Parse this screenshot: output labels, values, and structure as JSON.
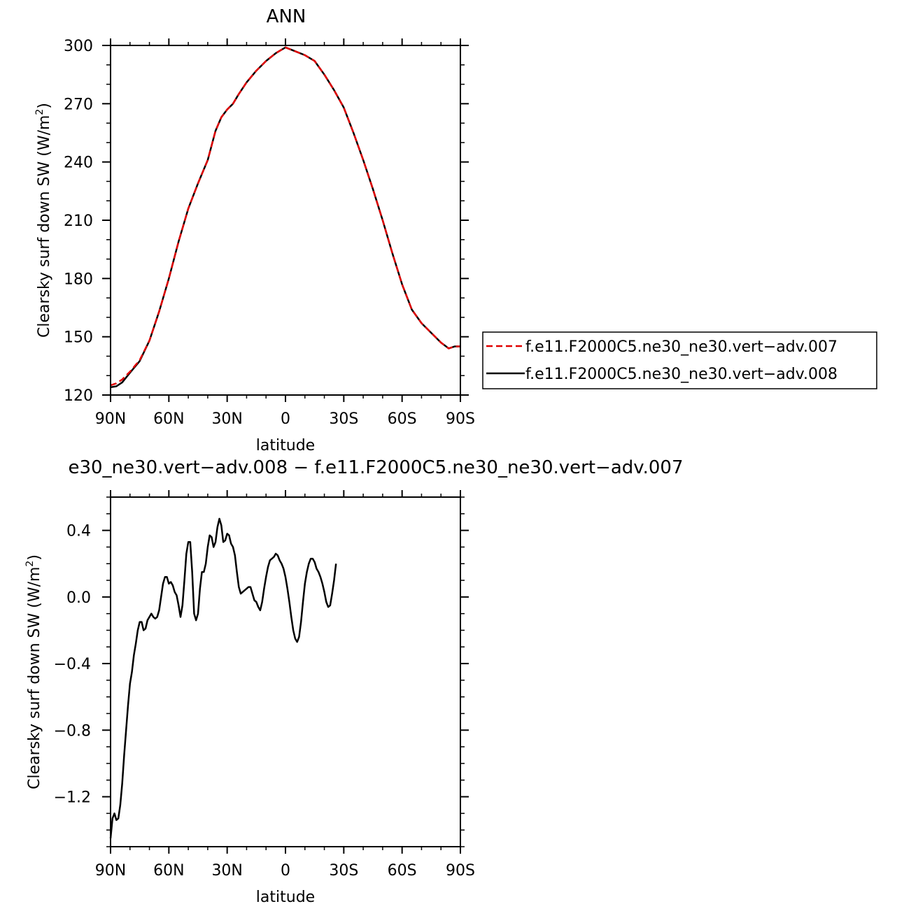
{
  "chart_data": [
    {
      "type": "line",
      "title": "ANN",
      "xlabel": "latitude",
      "ylabel": "Clearsky surf down SW (W/m²)",
      "ylabel_main": "Clearsky surf down SW (W/m",
      "ylabel_sup": "2",
      "ylabel_end": ")",
      "xlim": [
        90,
        -90
      ],
      "ylim": [
        120,
        300
      ],
      "x_ticks": [
        {
          "v": 90,
          "label": "90N"
        },
        {
          "v": 60,
          "label": "60N"
        },
        {
          "v": 30,
          "label": "30N"
        },
        {
          "v": 0,
          "label": "0"
        },
        {
          "v": -30,
          "label": "30S"
        },
        {
          "v": -60,
          "label": "60S"
        },
        {
          "v": -90,
          "label": "90S"
        }
      ],
      "y_ticks": [
        {
          "v": 120,
          "label": "120"
        },
        {
          "v": 150,
          "label": "150"
        },
        {
          "v": 180,
          "label": "180"
        },
        {
          "v": 210,
          "label": "210"
        },
        {
          "v": 240,
          "label": "240"
        },
        {
          "v": 270,
          "label": "270"
        },
        {
          "v": 300,
          "label": "300"
        }
      ],
      "legend": {
        "placement": "right",
        "entries": [
          {
            "name": "f.e11.F2000C5.ne30_ne30.vert−adv.007",
            "color": "#e00000",
            "dash": true
          },
          {
            "name": "f.e11.F2000C5.ne30_ne30.vert−adv.008",
            "color": "#000000",
            "dash": false
          }
        ]
      },
      "series": [
        {
          "name": "f.e11.F2000C5.ne30_ne30.vert−adv.007",
          "color": "#e00000",
          "dashed": true,
          "points": [
            [
              90,
              125
            ],
            [
              87,
              126
            ],
            [
              84,
              128
            ],
            [
              80,
              132
            ],
            [
              75,
              138
            ],
            [
              70,
              148
            ],
            [
              65,
              163
            ],
            [
              60,
              180
            ],
            [
              55,
              199
            ],
            [
              50,
              216
            ],
            [
              45,
              229
            ],
            [
              40,
              241
            ],
            [
              36,
              256
            ],
            [
              33,
              263
            ],
            [
              30,
              267
            ],
            [
              27,
              270
            ],
            [
              24,
              275
            ],
            [
              20,
              281
            ],
            [
              15,
              287
            ],
            [
              10,
              292
            ],
            [
              5,
              296
            ],
            [
              0,
              299
            ],
            [
              -5,
              297
            ],
            [
              -10,
              295
            ],
            [
              -15,
              292
            ],
            [
              -20,
              285
            ],
            [
              -25,
              277
            ],
            [
              -30,
              268
            ],
            [
              -35,
              255
            ],
            [
              -40,
              241
            ],
            [
              -45,
              226
            ],
            [
              -50,
              210
            ],
            [
              -55,
              193
            ],
            [
              -60,
              177
            ],
            [
              -65,
              164
            ],
            [
              -70,
              157
            ],
            [
              -75,
              152
            ],
            [
              -80,
              147
            ],
            [
              -84,
              144
            ],
            [
              -87,
              145
            ],
            [
              -90,
              145
            ]
          ]
        },
        {
          "name": "f.e11.F2000C5.ne30_ne30.vert−adv.008",
          "color": "#000000",
          "dashed": false,
          "points": [
            [
              90,
              124
            ],
            [
              87,
              124.5
            ],
            [
              84,
              126.5
            ],
            [
              80,
              131.5
            ],
            [
              75,
              137.5
            ],
            [
              70,
              148
            ],
            [
              65,
              163
            ],
            [
              60,
              180
            ],
            [
              55,
              199
            ],
            [
              50,
              216
            ],
            [
              45,
              229
            ],
            [
              40,
              241
            ],
            [
              36,
              256
            ],
            [
              33,
              263
            ],
            [
              30,
              267
            ],
            [
              27,
              270
            ],
            [
              24,
              275
            ],
            [
              20,
              281
            ],
            [
              15,
              287
            ],
            [
              10,
              292
            ],
            [
              5,
              296
            ],
            [
              0,
              299
            ],
            [
              -5,
              297
            ],
            [
              -10,
              295
            ],
            [
              -15,
              292
            ],
            [
              -20,
              285
            ],
            [
              -25,
              277
            ],
            [
              -30,
              268
            ],
            [
              -35,
              255
            ],
            [
              -40,
              241
            ],
            [
              -45,
              226
            ],
            [
              -50,
              210
            ],
            [
              -55,
              193
            ],
            [
              -60,
              177
            ],
            [
              -65,
              164
            ],
            [
              -70,
              157
            ],
            [
              -75,
              152
            ],
            [
              -80,
              147
            ],
            [
              -84,
              144
            ],
            [
              -87,
              145
            ],
            [
              -90,
              145
            ]
          ]
        }
      ]
    },
    {
      "type": "line",
      "title": "e30_ne30.vert−adv.008 − f.e11.F2000C5.ne30_ne30.vert−adv.007",
      "xlabel": "latitude",
      "ylabel": "Clearsky surf down SW (W/m²)",
      "ylabel_main": "Clearsky surf down SW (W/m",
      "ylabel_sup": "2",
      "ylabel_end": ")",
      "xlim": [
        90,
        -90
      ],
      "ylim": [
        -1.5,
        0.6
      ],
      "x_ticks": [
        {
          "v": 90,
          "label": "90N"
        },
        {
          "v": 60,
          "label": "60N"
        },
        {
          "v": 30,
          "label": "30N"
        },
        {
          "v": 0,
          "label": "0"
        },
        {
          "v": -30,
          "label": "30S"
        },
        {
          "v": -60,
          "label": "60S"
        },
        {
          "v": -90,
          "label": "90S"
        }
      ],
      "y_ticks": [
        {
          "v": 0.4,
          "label": "0.4"
        },
        {
          "v": 0.0,
          "label": "0.0"
        },
        {
          "v": -0.4,
          "label": "−0.4"
        },
        {
          "v": -0.8,
          "label": "−0.8"
        },
        {
          "v": -1.2,
          "label": "−1.2"
        }
      ],
      "series": [
        {
          "color": "#000000",
          "dashed": false,
          "points": [
            [
              90,
              -1.45
            ],
            [
              89,
              -1.33
            ],
            [
              88,
              -1.3
            ],
            [
              87,
              -1.34
            ],
            [
              86,
              -1.33
            ],
            [
              85,
              -1.25
            ],
            [
              84,
              -1.12
            ],
            [
              83,
              -0.95
            ],
            [
              82,
              -0.8
            ],
            [
              81,
              -0.65
            ],
            [
              80,
              -0.52
            ],
            [
              79,
              -0.45
            ],
            [
              78,
              -0.35
            ],
            [
              77,
              -0.28
            ],
            [
              76,
              -0.2
            ],
            [
              75,
              -0.15
            ],
            [
              74,
              -0.15
            ],
            [
              73,
              -0.2
            ],
            [
              72,
              -0.19
            ],
            [
              71,
              -0.14
            ],
            [
              70,
              -0.12
            ],
            [
              69,
              -0.1
            ],
            [
              68,
              -0.12
            ],
            [
              67,
              -0.13
            ],
            [
              66,
              -0.12
            ],
            [
              65,
              -0.08
            ],
            [
              64,
              0.0
            ],
            [
              63,
              0.08
            ],
            [
              62,
              0.12
            ],
            [
              61,
              0.12
            ],
            [
              60,
              0.08
            ],
            [
              59,
              0.09
            ],
            [
              58,
              0.07
            ],
            [
              57,
              0.03
            ],
            [
              56,
              0.01
            ],
            [
              55,
              -0.05
            ],
            [
              54,
              -0.12
            ],
            [
              53,
              -0.05
            ],
            [
              52,
              0.1
            ],
            [
              51,
              0.26
            ],
            [
              50,
              0.33
            ],
            [
              49,
              0.33
            ],
            [
              48,
              0.15
            ],
            [
              47,
              -0.1
            ],
            [
              46,
              -0.14
            ],
            [
              45,
              -0.1
            ],
            [
              44,
              0.05
            ],
            [
              43,
              0.15
            ],
            [
              42,
              0.15
            ],
            [
              41,
              0.2
            ],
            [
              40,
              0.3
            ],
            [
              39,
              0.37
            ],
            [
              38,
              0.36
            ],
            [
              37,
              0.3
            ],
            [
              36,
              0.33
            ],
            [
              35,
              0.42
            ],
            [
              34,
              0.47
            ],
            [
              33,
              0.43
            ],
            [
              32,
              0.33
            ],
            [
              31,
              0.34
            ],
            [
              30,
              0.38
            ],
            [
              29,
              0.37
            ],
            [
              28,
              0.32
            ],
            [
              27,
              0.3
            ],
            [
              26,
              0.25
            ],
            [
              25,
              0.15
            ],
            [
              24,
              0.06
            ],
            [
              23,
              0.02
            ],
            [
              22,
              0.03
            ],
            [
              21,
              0.04
            ],
            [
              20,
              0.05
            ],
            [
              19,
              0.06
            ],
            [
              18,
              0.06
            ],
            [
              17,
              0.02
            ],
            [
              16,
              -0.02
            ],
            [
              15,
              -0.03
            ],
            [
              14,
              -0.06
            ],
            [
              13,
              -0.08
            ],
            [
              12,
              -0.03
            ],
            [
              11,
              0.05
            ],
            [
              10,
              0.12
            ],
            [
              9,
              0.18
            ],
            [
              8,
              0.22
            ],
            [
              7,
              0.23
            ],
            [
              6,
              0.24
            ],
            [
              5,
              0.26
            ],
            [
              4,
              0.25
            ],
            [
              3,
              0.22
            ],
            [
              2,
              0.2
            ],
            [
              1,
              0.17
            ],
            [
              0,
              0.12
            ],
            [
              -1,
              0.05
            ],
            [
              -2,
              -0.03
            ],
            [
              -3,
              -0.12
            ],
            [
              -4,
              -0.2
            ],
            [
              -5,
              -0.25
            ],
            [
              -6,
              -0.27
            ],
            [
              -7,
              -0.24
            ],
            [
              -8,
              -0.15
            ],
            [
              -9,
              -0.03
            ],
            [
              -10,
              0.08
            ],
            [
              -11,
              0.15
            ],
            [
              -12,
              0.2
            ],
            [
              -13,
              0.23
            ],
            [
              -14,
              0.23
            ],
            [
              -15,
              0.21
            ],
            [
              -16,
              0.17
            ],
            [
              -17,
              0.15
            ],
            [
              -18,
              0.12
            ],
            [
              -19,
              0.08
            ],
            [
              -20,
              0.03
            ],
            [
              -21,
              -0.03
            ],
            [
              -22,
              -0.06
            ],
            [
              -23,
              -0.05
            ],
            [
              -24,
              0.02
            ],
            [
              -25,
              0.1
            ],
            [
              -26,
              0.2
            ]
          ],
          "points_note": ""
        }
      ]
    }
  ]
}
